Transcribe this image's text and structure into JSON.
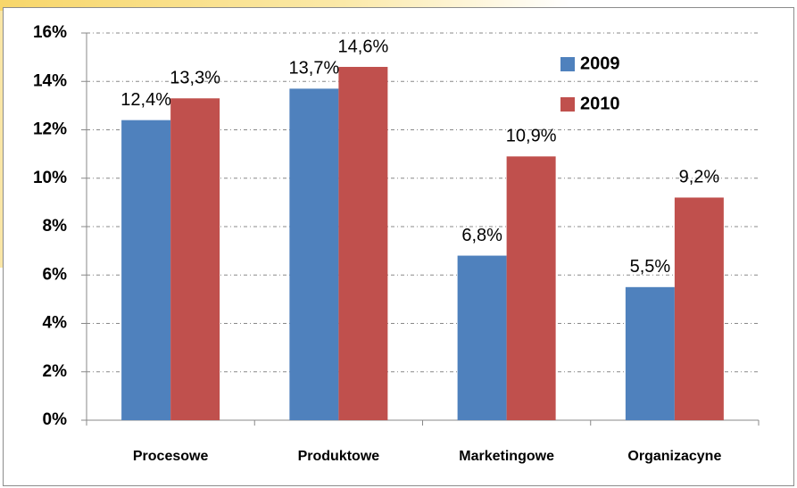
{
  "chart_data": {
    "type": "bar",
    "categories": [
      "Procesowe",
      "Produktowe",
      "Marketingowe",
      "Organizacyne"
    ],
    "series": [
      {
        "name": "2009",
        "color": "#4f81bd",
        "values": [
          12.4,
          13.7,
          6.8,
          5.5
        ],
        "value_labels": [
          "12,4%",
          "13,7%",
          "6,8%",
          "5,5%"
        ]
      },
      {
        "name": "2010",
        "color": "#c0504d",
        "values": [
          13.3,
          14.6,
          10.9,
          9.2
        ],
        "value_labels": [
          "13,3%",
          "14,6%",
          "10,9%",
          "9,2%"
        ]
      }
    ],
    "ylim": [
      0,
      16
    ],
    "yticks": [
      {
        "value": 0,
        "label": "0%"
      },
      {
        "value": 2,
        "label": "2%"
      },
      {
        "value": 4,
        "label": "4%"
      },
      {
        "value": 6,
        "label": "6%"
      },
      {
        "value": 8,
        "label": "8%"
      },
      {
        "value": 10,
        "label": "10%"
      },
      {
        "value": 12,
        "label": "12%"
      },
      {
        "value": 14,
        "label": "14%"
      },
      {
        "value": 16,
        "label": "16%"
      }
    ],
    "grid": true,
    "legend": "upper right"
  }
}
